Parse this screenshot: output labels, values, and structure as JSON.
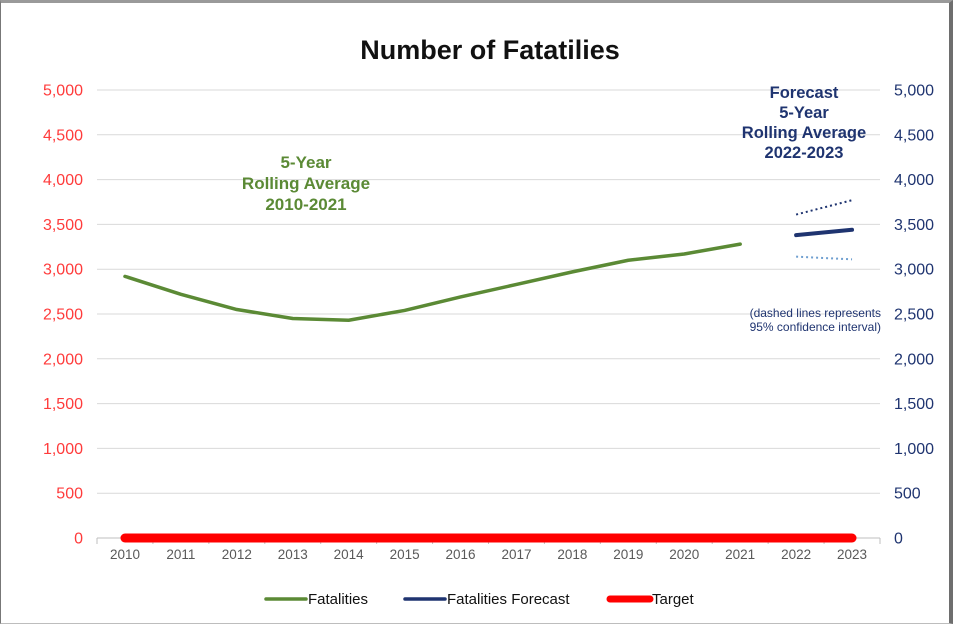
{
  "chart_data": {
    "type": "line",
    "title": "Number of Fatatilies",
    "categories": [
      "2010",
      "2011",
      "2012",
      "2013",
      "2014",
      "2015",
      "2016",
      "2017",
      "2018",
      "2019",
      "2020",
      "2021",
      "2022",
      "2023"
    ],
    "y_left": {
      "min": 0,
      "max": 5000,
      "step": 500,
      "tick_labels": [
        "0",
        "500",
        "1,000",
        "1,500",
        "2,000",
        "2,500",
        "3,000",
        "3,500",
        "4,000",
        "4,500",
        "5,000"
      ],
      "color": "#ff3b3b"
    },
    "y_right": {
      "min": 0,
      "max": 5000,
      "step": 500,
      "tick_labels": [
        "0",
        "500",
        "1,000",
        "1,500",
        "2,000",
        "2,500",
        "3,000",
        "3,500",
        "4,000",
        "4,500",
        "5,000"
      ],
      "color": "#1f3470"
    },
    "grid": true,
    "series": [
      {
        "name": "Fatalities",
        "color": "#5b8a35",
        "x": [
          "2010",
          "2011",
          "2012",
          "2013",
          "2014",
          "2015",
          "2016",
          "2017",
          "2018",
          "2019",
          "2020",
          "2021"
        ],
        "values": [
          2920,
          2720,
          2550,
          2450,
          2430,
          2540,
          2690,
          2830,
          2970,
          3100,
          3170,
          3280
        ]
      },
      {
        "name": "Fatalities Forecast",
        "color": "#1f3470",
        "x": [
          "2022",
          "2023"
        ],
        "values": [
          3380,
          3440
        ]
      },
      {
        "name": "Target",
        "color": "#ff0000",
        "x": [
          "2010",
          "2011",
          "2012",
          "2013",
          "2014",
          "2015",
          "2016",
          "2017",
          "2018",
          "2019",
          "2020",
          "2021",
          "2022",
          "2023"
        ],
        "values": [
          0,
          0,
          0,
          0,
          0,
          0,
          0,
          0,
          0,
          0,
          0,
          0,
          0,
          0
        ]
      }
    ],
    "confidence_interval": {
      "x": [
        "2022",
        "2023"
      ],
      "upper": {
        "values": [
          3610,
          3770
        ],
        "color": "#1f3470"
      },
      "lower": {
        "values": [
          3140,
          3110
        ],
        "color": "#6f9fd0"
      }
    },
    "annotations": {
      "historical": [
        "5-Year",
        "Rolling Average",
        "2010-2021"
      ],
      "forecast": [
        "Forecast",
        "5-Year",
        "Rolling Average",
        "2022-2023"
      ],
      "note": [
        "(dashed lines  represents",
        "95% confidence interval)"
      ]
    },
    "legend": {
      "placement": "bottom",
      "items": [
        "Fatalities",
        "Fatalities Forecast",
        "Target"
      ]
    }
  }
}
